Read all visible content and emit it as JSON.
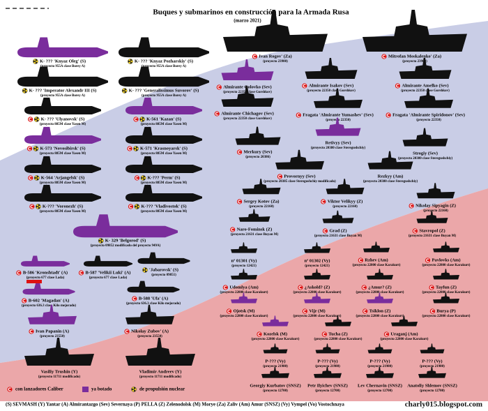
{
  "header": {
    "title": "Buques y submarinos en construcción para la Armada Rusa",
    "subtitle": "(marzo 2021)"
  },
  "items": [
    {
      "label": "K- ??? 'Knyaz Oleg' (S)",
      "sub": "(proyecto 955A clase Borey A)",
      "kind": "sub",
      "launched": true,
      "nuclear": true
    },
    {
      "label": "K- ??? 'Imperator Alexandr III (S)",
      "sub": "(proyecto 955A clase Borey A)",
      "kind": "sub",
      "nuclear": true
    },
    {
      "label": "K- ??? 'Ulyanovsk' (S)",
      "sub": "(proyecto 885M clase Yasen M)",
      "kind": "sub",
      "caliber": true,
      "nuclear": true
    },
    {
      "label": "K-573 'Novosibirsk' (S)",
      "sub": "(proyecto 885M clase Yasen M)",
      "kind": "sub",
      "launched": true,
      "caliber": true,
      "nuclear": true
    },
    {
      "label": "K-564 'Arjangelsk' (S)",
      "sub": "(proyecto 885M clase Yasen M)",
      "kind": "sub",
      "caliber": true,
      "nuclear": true
    },
    {
      "label": "K-??? 'Voronezh' (S)",
      "sub": "(proyecto 885M clase Yasen M)",
      "kind": "sub",
      "caliber": true,
      "nuclear": true
    },
    {
      "label": "K- ??? 'Knyaz Pozharskiy' (S)",
      "sub": "(proyecto 955A clase Borey A)",
      "kind": "sub",
      "nuclear": true
    },
    {
      "label": "K- ??? 'Generalíssimus Suvorov' (S)",
      "sub": "(proyecto 955A clase Borey A)",
      "kind": "sub",
      "nuclear": true
    },
    {
      "label": "K-561 'Kazan' (S)",
      "sub": "(proyecto 885M clase Yasen M)",
      "kind": "sub",
      "launched": true,
      "caliber": true,
      "nuclear": true
    },
    {
      "label": "K-571 'Krasnoyarsk' (S)",
      "sub": "(proyecto 885M clase Yasen M)",
      "kind": "sub",
      "caliber": true,
      "nuclear": true
    },
    {
      "label": "K-??? 'Perm' (S)",
      "sub": "(proyecto 885M clase Yasen M)",
      "kind": "sub",
      "caliber": true,
      "nuclear": true
    },
    {
      "label": "K-??? 'Vladivostok' (S)",
      "sub": "(proyecto 885M clase Yasen M)",
      "kind": "sub",
      "caliber": true,
      "nuclear": true
    },
    {
      "label": "K- 329 'Belgorod' (S)",
      "sub": "(proyecto 09852 modificado del proyecto 949A)",
      "kind": "sub",
      "launched": true,
      "nuclear": true
    },
    {
      "label": "B-586 'Kronshtadt' (A)",
      "sub": "(proyecto 677 clase Lada)",
      "kind": "sub",
      "launched": true,
      "caliber": true
    },
    {
      "label": "B-587 'Velikii Luki' (A)",
      "sub": "(proyecto 677 clase Lada)",
      "kind": "sub",
      "caliber": true
    },
    {
      "label": "'Jabarovsk' (S)",
      "sub": "(proyecto 09851)",
      "kind": "sub",
      "nuclear": true
    },
    {
      "label": "B-602 'Magadan' (A)",
      "sub": "(proyecto 636.3 clase Kilo mejorado)",
      "kind": "sub",
      "launched": true,
      "caliber": true
    },
    {
      "label": "B-588 'Ufa' (A)",
      "sub": "(proyecto 636.3 clase Kilo mejorado)",
      "kind": "sub",
      "caliber": true
    },
    {
      "label": "Ivan Papanin (A)",
      "sub": "(proyecto 23550)",
      "kind": "ship",
      "launched": true,
      "caliber": true
    },
    {
      "label": "Nikolay Zubov' (A)",
      "sub": "(proyecto 23550)",
      "kind": "ship",
      "caliber": true
    },
    {
      "label": "Vasiliy Trushin (Y)",
      "sub": "(proyecto 11711 modificado)",
      "kind": "ship"
    },
    {
      "label": "Vladimir Andreev (Y)",
      "sub": "(proyecto 11711 modificado)",
      "kind": "ship"
    },
    {
      "label": "Ivan Rogov' (Za)",
      "sub": "(proyecto 23900)",
      "kind": "ship",
      "caliber": true
    },
    {
      "label": "Mitrofan Moskalenko' (Za)",
      "sub": "(proyecto 23900)",
      "kind": "ship",
      "caliber": true
    },
    {
      "label": "Almirante Golovko (Sev)",
      "sub": "(proyecto 22350 clase Gorshkov)",
      "kind": "ship",
      "launched": true,
      "caliber": true
    },
    {
      "label": "Almirante Isakov (Sev)",
      "sub": "(proyecto 22350 clase Gorshkov)",
      "kind": "ship",
      "caliber": true
    },
    {
      "label": "Almirante Amelko (Sev)",
      "sub": "(proyecto 22350 clase Gorshkov)",
      "kind": "ship",
      "caliber": true
    },
    {
      "label": "Almirante Chichagov (Sev)",
      "sub": "(proyecto 22350 clase Gorshkov)",
      "kind": "ship",
      "caliber": true
    },
    {
      "label": "Fragata 'Almirante Yumashev' (Sev)",
      "sub": "(proyecto 22350)",
      "kind": "ship",
      "caliber": true
    },
    {
      "label": "Fragata 'Almirante Spiridonov' (Sev)",
      "sub": "(proyecto 22350)",
      "kind": "ship",
      "caliber": true
    },
    {
      "label": "Retivyy (Sev)",
      "sub": "(proyecto 20380 clase Steregushchiy)",
      "kind": "ship",
      "launched": true
    },
    {
      "label": "Merkury (Sev)",
      "sub": "(proyecto 20386)",
      "kind": "ship",
      "caliber": true
    },
    {
      "label": "Strogiy (Sev)",
      "sub": "(proyecto 20380 clase Steregushchiy)",
      "kind": "ship"
    },
    {
      "label": "Provornyy (Sev)",
      "sub": "(proyecto 20385 clase Steregushchiy modificado)",
      "kind": "ship",
      "caliber": true
    },
    {
      "label": "Rezkyy (Am)",
      "sub": "(proyecto 20380 clase Steregushchiy)",
      "kind": "ship"
    },
    {
      "label": "Sergey Kotov (Za)",
      "sub": "(proyecto 22160)",
      "kind": "ship",
      "caliber": true
    },
    {
      "label": "Viktor Velikyy (Z)",
      "sub": "(proyecto 22160)",
      "kind": "ship",
      "caliber": true
    },
    {
      "label": "Nikolay Sipyagin (Z)",
      "sub": "(proyecto 22160)",
      "kind": "ship",
      "caliber": true
    },
    {
      "label": "Naro-Fominsk (Z)",
      "sub": "(proyecto 21631 clase Buyan M)",
      "kind": "ship",
      "caliber": true
    },
    {
      "label": "Grad (Z)",
      "sub": "(proyecto 21631 clase Buyan M)",
      "kind": "ship",
      "caliber": true
    },
    {
      "label": "Stavropol (Z)",
      "sub": "(proyecto 21631 clase Buyan M)",
      "kind": "ship",
      "caliber": true
    },
    {
      "label": "nº 01301 (Vy)",
      "sub": "(proyecto 12421)",
      "kind": "ship"
    },
    {
      "label": "nº 01302 (Vy)",
      "sub": "(proyecto 12421)",
      "kind": "ship"
    },
    {
      "label": "Rzhev (Am)",
      "sub": "(proyecto 22800 clase Karakurt)",
      "kind": "ship",
      "caliber": true
    },
    {
      "label": "Pavlovks (Am)",
      "sub": "(proyecto 22800 clase Karakurt)",
      "kind": "ship",
      "caliber": true
    },
    {
      "label": "Udomlya (Am)",
      "sub": "(proyecto 22800 clase Karakurt)",
      "kind": "ship",
      "caliber": true
    },
    {
      "label": "¿Askold? (Z)",
      "sub": "(proyecto 22800 clase Karakurt)",
      "kind": "ship",
      "caliber": true
    },
    {
      "label": "¿Amur? (Z)",
      "sub": "(proyecto 22800 clase Karakurt)",
      "kind": "ship",
      "caliber": true
    },
    {
      "label": "Tayfun (Z)",
      "sub": "(proyecto 22800 clase Karakurt)",
      "kind": "ship",
      "caliber": true
    },
    {
      "label": "Ojotsk (M)",
      "sub": "(proyecto 22800 clase Karakurt)",
      "kind": "ship",
      "launched": true,
      "caliber": true
    },
    {
      "label": "Vijr (M)",
      "sub": "(proyecto 22800 clase Karakurt)",
      "kind": "ship",
      "launched": true,
      "caliber": true
    },
    {
      "label": "Tsiklon (Z)",
      "sub": "(proyecto 22800 clase Karakurt)",
      "kind": "ship",
      "launched": true,
      "caliber": true
    },
    {
      "label": "Burya (P)",
      "sub": "(proyecto 22800 clase Karakurt)",
      "kind": "ship",
      "caliber": true
    },
    {
      "label": "Kozelsk (M)",
      "sub": "(proyecto 22800 clase Karakurt)",
      "kind": "ship",
      "launched": true,
      "caliber": true
    },
    {
      "label": "Tucha (Z)",
      "sub": "(proyecto 22800 clase Karakurt)",
      "kind": "ship",
      "caliber": true
    },
    {
      "label": "Uraganj (Am)",
      "sub": "(proyecto 22800 clase Karakurt)",
      "kind": "ship",
      "caliber": true
    },
    {
      "label": "P-??? (Vy)",
      "sub": "(proyecto 21980)",
      "kind": "ship"
    },
    {
      "label": "P-??? (Vy)",
      "sub": "(proyecto 21980)",
      "kind": "ship"
    },
    {
      "label": "P-??? (Vy)",
      "sub": "(proyecto 21980)",
      "kind": "ship"
    },
    {
      "label": "P-??? (Vy)",
      "sub": "(proyecto 21980)",
      "kind": "ship"
    },
    {
      "label": "Georgiy Kurbatov (SNSZ)",
      "sub": "(proyecto 12700)",
      "kind": "ship"
    },
    {
      "label": "Petr Ilyichev (SNSZ)",
      "sub": "(proyecto 12700)",
      "kind": "ship"
    },
    {
      "label": "Lev Chernavin (SNSZ)",
      "sub": "(proyecto 12700)",
      "kind": "ship"
    },
    {
      "label": "Anatoliy Shlemov (SNSZ)",
      "sub": "(proyecto 12700)",
      "kind": "ship"
    }
  ],
  "legend": [
    "con lanzadores Caliber",
    "ya botado",
    "de propulsión nuclear"
  ],
  "shipyards": "(S) SEVMASH  (Y) Yantar  (A) Almirantazgo  (Sev) Severnaya  (P) PELLA  (Z) Zelenodolsk  (M) Morye  (Za) Zaliv  (Am) Amur  (SNSZ)  (Vy) Vympel  (Vo) Vostochnaya",
  "site": "charly015.blogspot.com"
}
